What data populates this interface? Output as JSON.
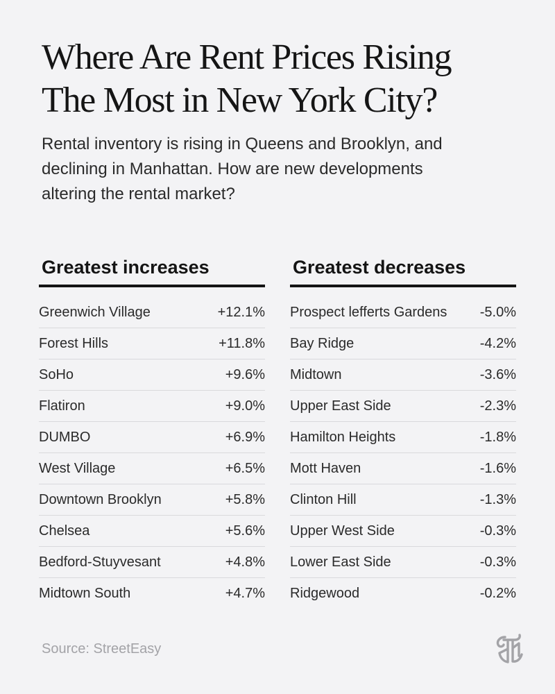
{
  "title_lines": [
    "Where Are Rent Prices Rising",
    "The Most in New York City?"
  ],
  "subtitle_lines": [
    "Rental inventory is rising in Queens and Brooklyn, and",
    "declining in Manhattan. How are new developments",
    "altering the rental market?"
  ],
  "source": "Source: StreetEasy",
  "logo_icon": "nyt-t-logo-icon",
  "chart_data": {
    "type": "table",
    "title": "Where Are Rent Prices Rising The Most in New York City?",
    "tables": [
      {
        "heading": "Greatest increases",
        "rows": [
          {
            "name": "Greenwich Village",
            "value": 12.1,
            "label": "+12.1%"
          },
          {
            "name": "Forest Hills",
            "value": 11.8,
            "label": "+11.8%"
          },
          {
            "name": "SoHo",
            "value": 9.6,
            "label": "+9.6%"
          },
          {
            "name": "Flatiron",
            "value": 9.0,
            "label": "+9.0%"
          },
          {
            "name": "DUMBO",
            "value": 6.9,
            "label": "+6.9%"
          },
          {
            "name": "West Village",
            "value": 6.5,
            "label": "+6.5%"
          },
          {
            "name": "Downtown Brooklyn",
            "value": 5.8,
            "label": "+5.8%"
          },
          {
            "name": "Chelsea",
            "value": 5.6,
            "label": "+5.6%"
          },
          {
            "name": "Bedford-Stuyvesant",
            "value": 4.8,
            "label": "+4.8%"
          },
          {
            "name": "Midtown South",
            "value": 4.7,
            "label": "+4.7%"
          }
        ]
      },
      {
        "heading": "Greatest decreases",
        "rows": [
          {
            "name": "Prospect lefferts Gardens",
            "value": -5.0,
            "label": "-5.0%"
          },
          {
            "name": "Bay Ridge",
            "value": -4.2,
            "label": "-4.2%"
          },
          {
            "name": "Midtown",
            "value": -3.6,
            "label": "-3.6%"
          },
          {
            "name": "Upper East Side",
            "value": -2.3,
            "label": "-2.3%"
          },
          {
            "name": "Hamilton Heights",
            "value": -1.8,
            "label": "-1.8%"
          },
          {
            "name": "Mott Haven",
            "value": -1.6,
            "label": "-1.6%"
          },
          {
            "name": "Clinton Hill",
            "value": -1.3,
            "label": "-1.3%"
          },
          {
            "name": "Upper West Side",
            "value": -0.3,
            "label": "-0.3%"
          },
          {
            "name": "Lower East Side",
            "value": -0.3,
            "label": "-0.3%"
          },
          {
            "name": "Ridgewood",
            "value": -0.2,
            "label": "-0.2%"
          }
        ]
      }
    ]
  }
}
